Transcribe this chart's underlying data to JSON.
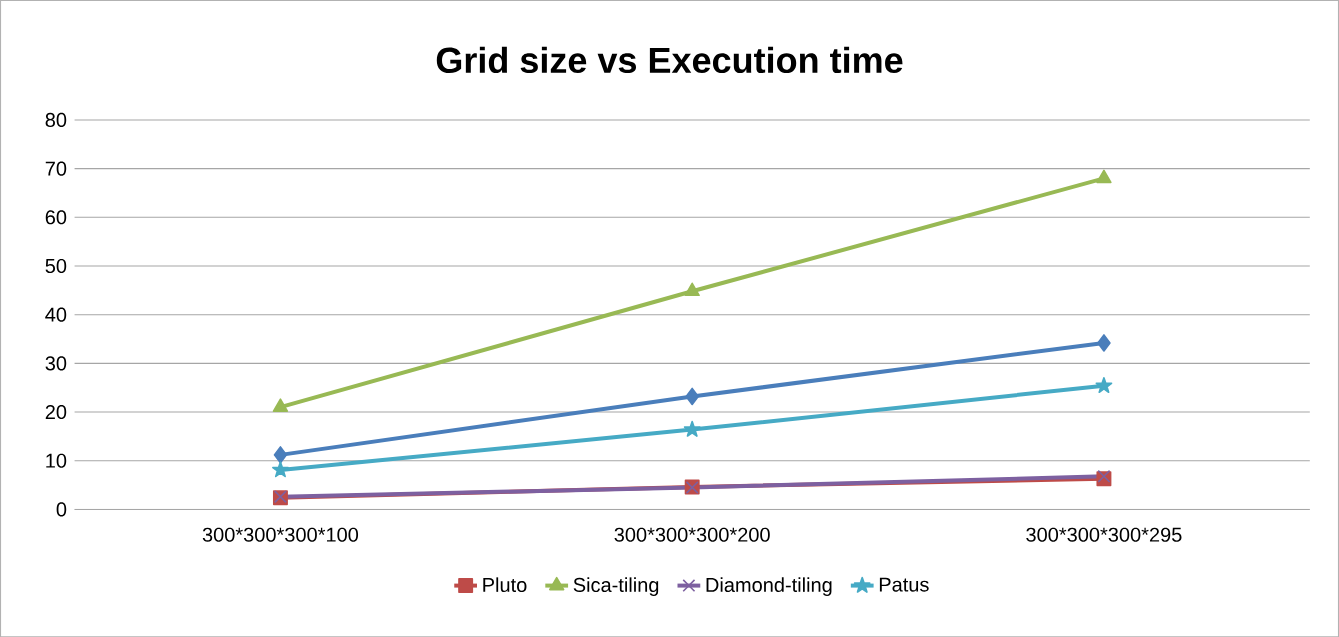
{
  "chart_data": {
    "type": "line",
    "title": "Grid size vs Execution time",
    "categories": [
      "300*300*300*100",
      "300*300*300*200",
      "300*300*300*295"
    ],
    "ylim": [
      0,
      80
    ],
    "yticks": [
      0,
      10,
      20,
      30,
      40,
      50,
      60,
      70,
      80
    ],
    "grid": "y",
    "legend": "bottom",
    "series": [
      {
        "color": "#4a7ebb",
        "marker": "diamond",
        "values": [
          11.2,
          23.2,
          34.2
        ]
      },
      {
        "name": "Pluto",
        "color": "#be4b48",
        "marker": "square",
        "values": [
          2.4,
          4.6,
          6.3
        ]
      },
      {
        "name": "Sica-tiling",
        "color": "#98b954",
        "marker": "triangle",
        "values": [
          21,
          44.8,
          68
        ]
      },
      {
        "name": "Diamond-tiling",
        "color": "#7d60a0",
        "marker": "cross",
        "values": [
          2.6,
          4.5,
          6.8
        ]
      },
      {
        "name": "Patus",
        "color": "#46aac5",
        "marker": "star",
        "values": [
          8.1,
          16.4,
          25.4
        ]
      }
    ]
  }
}
